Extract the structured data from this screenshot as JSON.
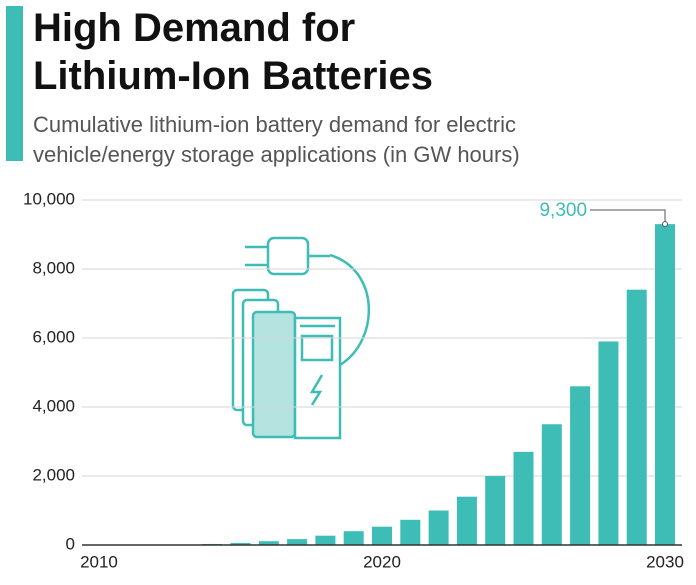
{
  "chart_data": {
    "type": "bar",
    "title": "High Demand for Lithium-Ion Batteries",
    "subtitle": "Cumulative lithium-ion battery demand for electric vehicle/energy storage applications (in GW hours)",
    "x": [
      2010,
      2011,
      2012,
      2013,
      2014,
      2015,
      2016,
      2017,
      2018,
      2019,
      2020,
      2021,
      2022,
      2023,
      2024,
      2025,
      2026,
      2027,
      2028,
      2029,
      2030
    ],
    "values": [
      1,
      2,
      5,
      10,
      30,
      60,
      110,
      170,
      270,
      400,
      530,
      730,
      1000,
      1400,
      2000,
      2700,
      3500,
      4600,
      5900,
      7400,
      9300
    ],
    "value_labels": [
      null,
      null,
      null,
      null,
      null,
      null,
      null,
      null,
      null,
      null,
      null,
      null,
      null,
      null,
      null,
      null,
      null,
      null,
      null,
      null,
      "9,300"
    ],
    "color": "#3dbdb5",
    "xlim": [
      2009.4,
      2030.6
    ],
    "xticks": [
      2010,
      2020,
      2030
    ],
    "ylim": [
      0,
      10000
    ],
    "yticks": [
      0,
      {
        "value": 2000,
        "label": "2,000"
      },
      {
        "value": 4000,
        "label": "4,000"
      },
      {
        "value": 6000,
        "label": "6,000"
      },
      {
        "value": 8000,
        "label": "8,000"
      },
      {
        "value": 10000,
        "label": "10,000"
      }
    ],
    "grid": true
  }
}
